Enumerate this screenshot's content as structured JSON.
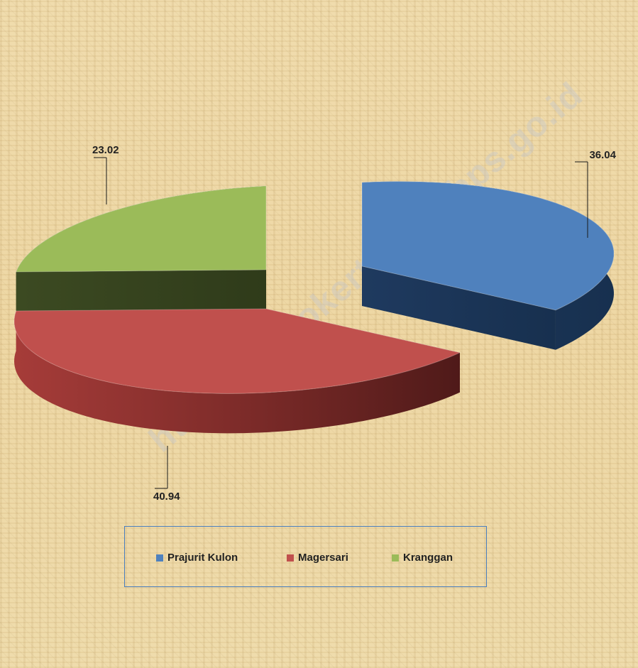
{
  "chart_data": {
    "type": "pie",
    "style": "3d-exploded",
    "categories": [
      "Prajurit Kulon",
      "Magersari",
      "Kranggan"
    ],
    "values": [
      36.04,
      40.94,
      23.02
    ],
    "colors": [
      "#4f81bd",
      "#c0504d",
      "#9bbb59"
    ],
    "data_labels": [
      "36.04",
      "40.94",
      "23.02"
    ],
    "legend_position": "bottom",
    "title": ""
  },
  "legend": {
    "items": [
      {
        "label": "Prajurit Kulon",
        "color": "#4f81bd"
      },
      {
        "label": "Magersari",
        "color": "#c0504d"
      },
      {
        "label": "Kranggan",
        "color": "#9bbb59"
      }
    ]
  },
  "watermark": {
    "text": "https://mojokertokota.bps.go.id"
  }
}
